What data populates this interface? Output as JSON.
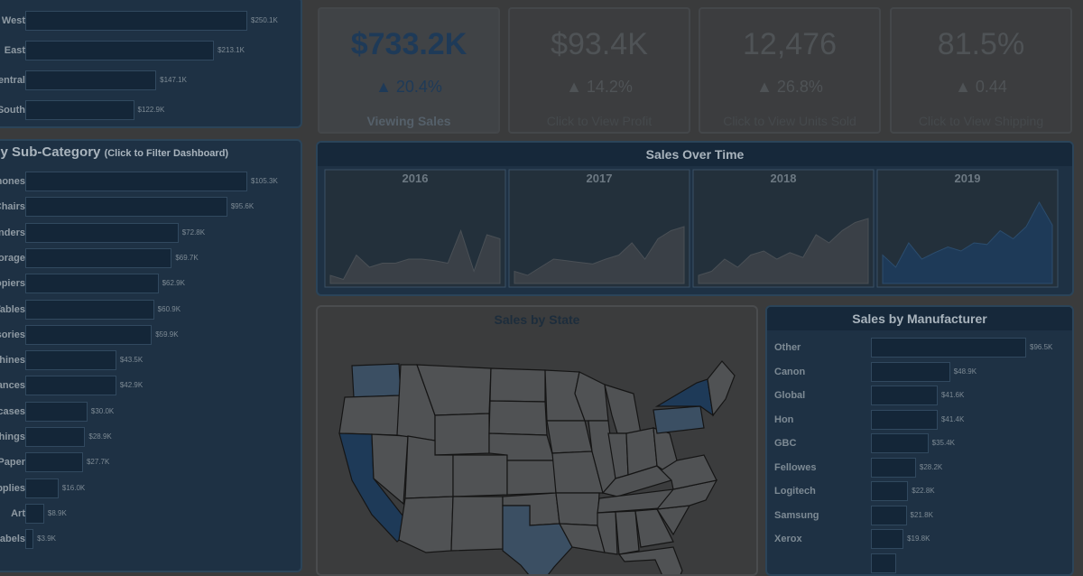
{
  "region_panel": {
    "rows": [
      {
        "label": "West",
        "value": "$250.1K",
        "frac": 1.0
      },
      {
        "label": "East",
        "value": "$213.1K",
        "frac": 0.85
      },
      {
        "label": "Central",
        "value": "$147.1K",
        "frac": 0.59
      },
      {
        "label": "South",
        "value": "$122.9K",
        "frac": 0.49
      }
    ]
  },
  "subcategory_panel": {
    "title": "Sales by Sub-Category",
    "hint": "(Click to Filter Dashboard)",
    "rows": [
      {
        "label": "Phones",
        "value": "$105.3K",
        "frac": 1.0
      },
      {
        "label": "Chairs",
        "value": "$95.6K",
        "frac": 0.91
      },
      {
        "label": "Binders",
        "value": "$72.8K",
        "frac": 0.69
      },
      {
        "label": "Storage",
        "value": "$69.7K",
        "frac": 0.66
      },
      {
        "label": "Copiers",
        "value": "$62.9K",
        "frac": 0.6
      },
      {
        "label": "Tables",
        "value": "$60.9K",
        "frac": 0.58
      },
      {
        "label": "Accessories",
        "value": "$59.9K",
        "frac": 0.57
      },
      {
        "label": "Machines",
        "value": "$43.5K",
        "frac": 0.41
      },
      {
        "label": "Appliances",
        "value": "$42.9K",
        "frac": 0.41
      },
      {
        "label": "Bookcases",
        "value": "$30.0K",
        "frac": 0.28
      },
      {
        "label": "Furnishings",
        "value": "$28.9K",
        "frac": 0.27
      },
      {
        "label": "Paper",
        "value": "$27.7K",
        "frac": 0.26
      },
      {
        "label": "Supplies",
        "value": "$16.0K",
        "frac": 0.15
      },
      {
        "label": "Art",
        "value": "$8.9K",
        "frac": 0.085
      },
      {
        "label": "Labels",
        "value": "$3.9K",
        "frac": 0.037
      }
    ]
  },
  "kpis": [
    {
      "value": "$733.2K",
      "delta": "▲ 20.4%",
      "caption": "Viewing Sales",
      "active": true
    },
    {
      "value": "$93.4K",
      "delta": "▲ 14.2%",
      "caption": "Click to View Profit",
      "active": false
    },
    {
      "value": "12,476",
      "delta": "▲ 26.8%",
      "caption": "Click to View Units Sold",
      "active": false
    },
    {
      "value": "81.5%",
      "delta": "▲ 0.44",
      "caption": "Click to View Shipping",
      "active": false
    }
  ],
  "sales_over_time": {
    "title": "Sales Over Time",
    "years": [
      "2016",
      "2017",
      "2018",
      "2019"
    ]
  },
  "map": {
    "title": "Sales by State"
  },
  "manufacturer_panel": {
    "title": "Sales by Manufacturer",
    "rows": [
      {
        "label": "Other",
        "value": "$96.5K",
        "frac": 1.0
      },
      {
        "label": "Canon",
        "value": "$48.9K",
        "frac": 0.51
      },
      {
        "label": "Global",
        "value": "$41.6K",
        "frac": 0.43
      },
      {
        "label": "Hon",
        "value": "$41.4K",
        "frac": 0.43
      },
      {
        "label": "GBC",
        "value": "$35.4K",
        "frac": 0.37
      },
      {
        "label": "Fellowes",
        "value": "$28.2K",
        "frac": 0.29
      },
      {
        "label": "Logitech",
        "value": "$22.8K",
        "frac": 0.24
      },
      {
        "label": "Samsung",
        "value": "$21.8K",
        "frac": 0.23
      },
      {
        "label": "Xerox",
        "value": "$19.8K",
        "frac": 0.21
      },
      {
        "label": "",
        "value": "",
        "frac": 0.16
      }
    ]
  },
  "colors": {
    "accent": "#1e3a58",
    "bar_fill": "#142638",
    "panel_dark": "#1e3144"
  }
}
